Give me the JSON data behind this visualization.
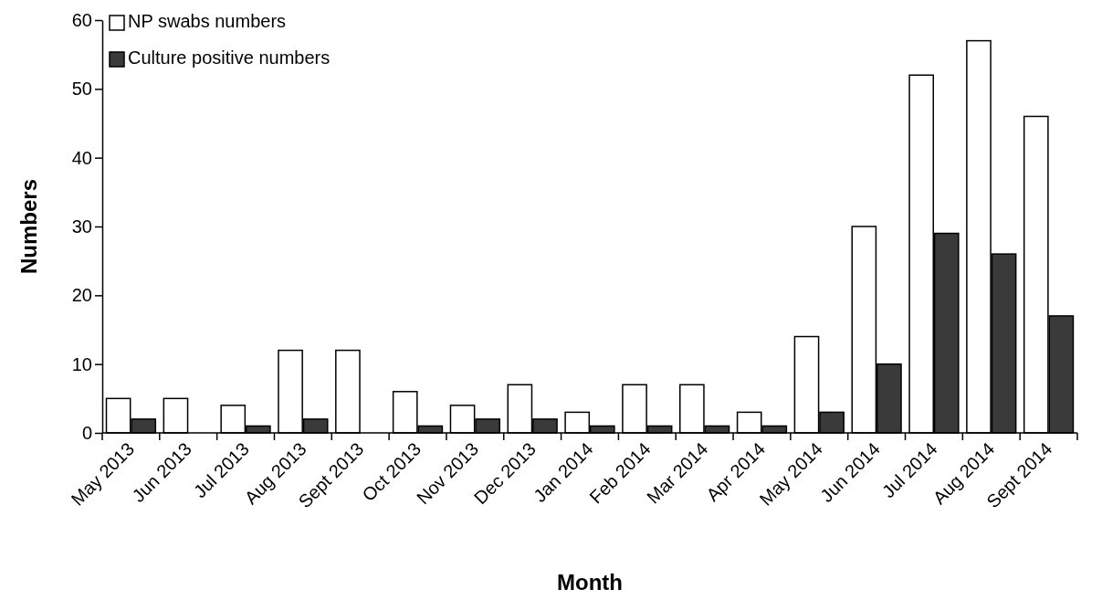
{
  "chart_data": {
    "type": "bar",
    "xlabel": "Month",
    "ylabel": "Numbers",
    "categories": [
      "May 2013",
      "Jun 2013",
      "Jul 2013",
      "Aug 2013",
      "Sept 2013",
      "Oct 2013",
      "Nov 2013",
      "Dec 2013",
      "Jan 2014",
      "Feb 2014",
      "Mar 2014",
      "Apr 2014",
      "May 2014",
      "Jun 2014",
      "Jul 2014",
      "Aug 2014",
      "Sept 2014"
    ],
    "series": [
      {
        "name": "NP swabs numbers",
        "color": "#ffffff",
        "values": [
          5,
          5,
          4,
          12,
          12,
          6,
          4,
          7,
          3,
          7,
          7,
          3,
          14,
          30,
          52,
          57,
          46
        ]
      },
      {
        "name": "Culture positive numbers",
        "color": "#3a3a3a",
        "values": [
          2,
          0,
          1,
          2,
          0,
          1,
          2,
          2,
          1,
          1,
          1,
          1,
          3,
          10,
          29,
          26,
          17
        ]
      }
    ],
    "ylim": [
      0,
      60
    ],
    "yticks": [
      0,
      10,
      20,
      30,
      40,
      50,
      60
    ],
    "grid": false,
    "legend": "top left"
  }
}
